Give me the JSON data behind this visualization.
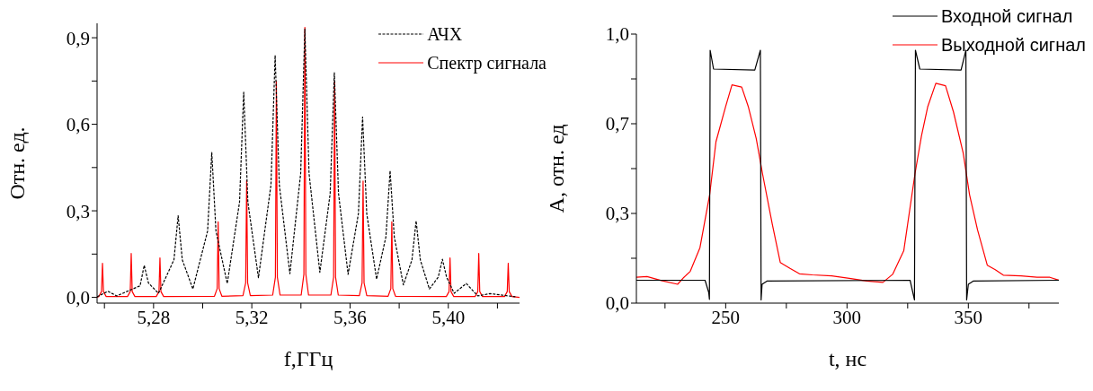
{
  "chart_data": [
    {
      "type": "line",
      "xlabel": "f,ГГц",
      "ylabel": "Отн. ед.",
      "xlim": [
        5.257,
        5.429
      ],
      "ylim": [
        -0.02,
        0.95
      ],
      "xticks": [
        {
          "value": 5.26,
          "label": null
        },
        {
          "value": 5.28,
          "label": "5,28"
        },
        {
          "value": 5.3,
          "label": null
        },
        {
          "value": 5.32,
          "label": "5,32"
        },
        {
          "value": 5.34,
          "label": null
        },
        {
          "value": 5.36,
          "label": "5,36"
        },
        {
          "value": 5.38,
          "label": null
        },
        {
          "value": 5.4,
          "label": "5,40"
        },
        {
          "value": 5.42,
          "label": null
        }
      ],
      "yticks": [
        {
          "value": 0,
          "label": "0,0"
        },
        {
          "value": 0.15,
          "label": null
        },
        {
          "value": 0.3,
          "label": "0,3"
        },
        {
          "value": 0.45,
          "label": null
        },
        {
          "value": 0.6,
          "label": "0,6"
        },
        {
          "value": 0.75,
          "label": null
        },
        {
          "value": 0.9,
          "label": "0,9"
        }
      ],
      "legend": "top right",
      "marker": "none",
      "series": [
        {
          "name": "АЧХ",
          "color": "#000000",
          "line_style": "dashed",
          "x": [
            5.257,
            5.2614,
            5.265,
            5.2745,
            5.2762,
            5.2779,
            5.282,
            5.2883,
            5.29,
            5.2917,
            5.296,
            5.302,
            5.3037,
            5.3054,
            5.31,
            5.315,
            5.3167,
            5.3184,
            5.3227,
            5.3278,
            5.3295,
            5.3312,
            5.3355,
            5.3399,
            5.3416,
            5.3433,
            5.3477,
            5.3519,
            5.3536,
            5.3553,
            5.3592,
            5.3634,
            5.3651,
            5.3668,
            5.3708,
            5.3746,
            5.3763,
            5.378,
            5.3817,
            5.3852,
            5.3869,
            5.3886,
            5.3923,
            5.3959,
            5.3976,
            5.3993,
            5.4024,
            5.4073,
            5.412,
            5.417,
            5.4273
          ],
          "values": [
            0.002,
            0.021,
            0.005,
            0.04,
            0.111,
            0.05,
            0.014,
            0.13,
            0.283,
            0.13,
            0.029,
            0.23,
            0.502,
            0.23,
            0.048,
            0.33,
            0.711,
            0.33,
            0.068,
            0.39,
            0.839,
            0.39,
            0.082,
            0.43,
            0.93,
            0.43,
            0.087,
            0.36,
            0.779,
            0.36,
            0.08,
            0.29,
            0.625,
            0.29,
            0.063,
            0.21,
            0.439,
            0.21,
            0.043,
            0.13,
            0.265,
            0.13,
            0.029,
            0.07,
            0.132,
            0.07,
            0.014,
            0.048,
            0.005,
            0.013,
            0.002
          ]
        },
        {
          "name": "Спектр сигнала",
          "color": "#ff0000",
          "line_style": "solid",
          "x": [
            5.257,
            5.2577,
            5.2588,
            5.2592,
            5.2596,
            5.2607,
            5.2694,
            5.2705,
            5.2709,
            5.2713,
            5.2724,
            5.2811,
            5.2822,
            5.2826,
            5.283,
            5.2841,
            5.3048,
            5.3059,
            5.3063,
            5.3067,
            5.3078,
            5.3164,
            5.3175,
            5.3179,
            5.3183,
            5.3194,
            5.3285,
            5.3296,
            5.33,
            5.3304,
            5.3315,
            5.3401,
            5.3412,
            5.3416,
            5.342,
            5.3431,
            5.3522,
            5.3533,
            5.3537,
            5.3541,
            5.3552,
            5.3638,
            5.3649,
            5.3653,
            5.3657,
            5.3668,
            5.3755,
            5.3766,
            5.377,
            5.3774,
            5.3785,
            5.3992,
            5.4003,
            5.4007,
            5.4011,
            5.4022,
            5.4109,
            5.412,
            5.4124,
            5.4128,
            5.4139,
            5.4229,
            5.424,
            5.4244,
            5.4248,
            5.4259,
            5.429
          ],
          "values": [
            0,
            0.003,
            0.02,
            0.118,
            0.02,
            0.003,
            0.003,
            0.02,
            0.152,
            0.02,
            0.003,
            0.003,
            0.02,
            0.137,
            0.02,
            0.003,
            0.004,
            0.03,
            0.262,
            0.03,
            0.004,
            0.006,
            0.05,
            0.405,
            0.05,
            0.006,
            0.008,
            0.07,
            0.748,
            0.07,
            0.008,
            0.008,
            0.08,
            0.936,
            0.08,
            0.008,
            0.008,
            0.07,
            0.748,
            0.07,
            0.008,
            0.006,
            0.05,
            0.403,
            0.05,
            0.006,
            0.004,
            0.03,
            0.262,
            0.03,
            0.004,
            0.003,
            0.02,
            0.137,
            0.02,
            0.003,
            0.003,
            0.02,
            0.152,
            0.02,
            0.003,
            0.003,
            0.02,
            0.118,
            0.02,
            0.003,
            0
          ]
        }
      ]
    },
    {
      "type": "line",
      "xlabel": "t, нс",
      "ylabel": "A, отн. ед",
      "xlim": [
        213.2,
        387.3
      ],
      "ylim": [
        0,
        1.0
      ],
      "xticks": [
        {
          "value": 225,
          "label": null
        },
        250,
        {
          "value": 275,
          "label": null
        },
        300,
        {
          "value": 325,
          "label": null
        },
        350,
        {
          "value": 375,
          "label": null
        }
      ],
      "yticks": [
        {
          "value": 0,
          "label": "0,0"
        },
        {
          "value": 0.1667,
          "label": null
        },
        {
          "value": 0.3333,
          "label": "0,3"
        },
        {
          "value": 0.5,
          "label": null
        },
        {
          "value": 0.6667,
          "label": "0,7"
        },
        {
          "value": 0.8333,
          "label": null
        },
        {
          "value": 1.0,
          "label": "1,0"
        }
      ],
      "legend": "top right",
      "marker": "none",
      "series": [
        {
          "name": "Входной сигнал",
          "color": "#000000",
          "line_style": "solid",
          "x": [
            213.2,
            241.5,
            243.0,
            243.3,
            243.6,
            245,
            262,
            264.3,
            264.6,
            265,
            267,
            326,
            327.8,
            328.2,
            330,
            347,
            349,
            349.3,
            350,
            352,
            387.3
          ],
          "values": [
            0.085,
            0.085,
            0.04,
            0.014,
            0.94,
            0.87,
            0.866,
            0.94,
            0.012,
            0.07,
            0.082,
            0.085,
            0.012,
            0.94,
            0.87,
            0.866,
            0.94,
            0.012,
            0.07,
            0.082,
            0.085
          ]
        },
        {
          "name": "Выходной сигнал",
          "color": "#ff0000",
          "line_style": "solid",
          "x": [
            213.2,
            217.6,
            223.5,
            230.2,
            232.8,
            235.4,
            239.4,
            243.4,
            246.0,
            250.0,
            252.6,
            256.6,
            259.3,
            262.6,
            265.2,
            269.2,
            272.5,
            276.5,
            280.4,
            285.7,
            293.7,
            301.6,
            308.2,
            314.8,
            318.8,
            323.4,
            328.0,
            330.7,
            333.3,
            336.6,
            340.6,
            343.9,
            347.9,
            350.5,
            353.8,
            357.8,
            361.1,
            364.4,
            371.7,
            378.3,
            383.6,
            387.3
          ],
          "values": [
            0.096,
            0.099,
            0.084,
            0.07,
            0.096,
            0.118,
            0.206,
            0.403,
            0.6,
            0.731,
            0.811,
            0.803,
            0.731,
            0.611,
            0.48,
            0.294,
            0.151,
            0.129,
            0.109,
            0.105,
            0.101,
            0.091,
            0.082,
            0.077,
            0.107,
            0.195,
            0.48,
            0.622,
            0.731,
            0.817,
            0.808,
            0.71,
            0.557,
            0.403,
            0.272,
            0.141,
            0.124,
            0.104,
            0.101,
            0.096,
            0.096,
            0.085
          ]
        }
      ]
    }
  ]
}
